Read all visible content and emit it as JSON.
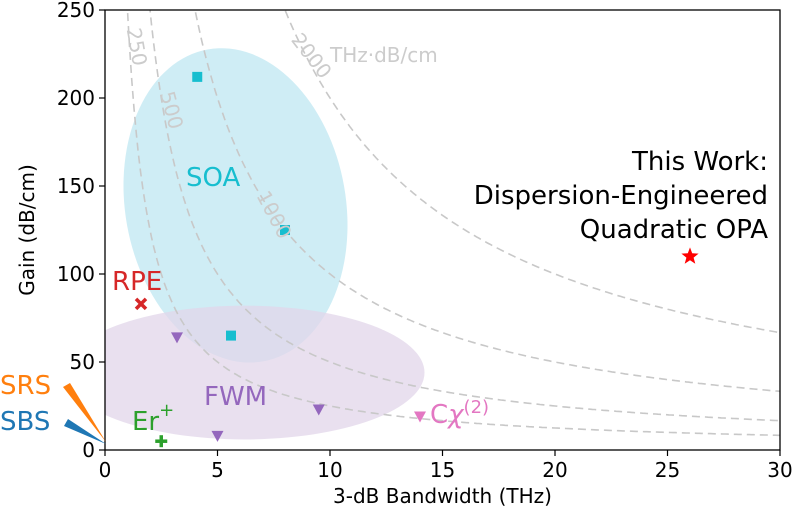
{
  "chart_data": {
    "type": "scatter",
    "xlabel": "3-dB Bandwidth (THz)",
    "ylabel": "Gain (dB/cm)",
    "xlim": [
      0,
      30
    ],
    "ylim": [
      0,
      250
    ],
    "xticks": [
      0,
      5,
      10,
      15,
      20,
      25,
      30
    ],
    "yticks": [
      0,
      50,
      100,
      150,
      200,
      250
    ],
    "contour_unit_label": "THz·dB/cm",
    "contours": [
      {
        "label": "250",
        "value": 250
      },
      {
        "label": "500",
        "value": 500
      },
      {
        "label": "1000",
        "value": 1000
      },
      {
        "label": "2000",
        "value": 2000
      }
    ],
    "series": [
      {
        "name": "SOA",
        "marker": "square",
        "color": "#17becf",
        "points": [
          {
            "x": 4.1,
            "y": 212
          },
          {
            "x": 8.0,
            "y": 125
          },
          {
            "x": 5.6,
            "y": 65
          }
        ]
      },
      {
        "name": "FWM",
        "marker": "triangle-down",
        "color": "#9467bd",
        "points": [
          {
            "x": 3.2,
            "y": 64
          },
          {
            "x": 5.0,
            "y": 8
          },
          {
            "x": 9.5,
            "y": 23
          }
        ]
      },
      {
        "name": "RPE",
        "marker": "x",
        "color": "#d62728",
        "points": [
          {
            "x": 1.6,
            "y": 83
          }
        ]
      },
      {
        "name": "Er",
        "marker": "plus",
        "color": "#2ca02c",
        "points": [
          {
            "x": 2.5,
            "y": 5
          }
        ]
      },
      {
        "name": "Cχ(2)",
        "marker": "triangle-down",
        "color": "#e377c2",
        "points": [
          {
            "x": 14.0,
            "y": 19
          }
        ]
      },
      {
        "name": "This Work",
        "marker": "star",
        "color": "#ff0000",
        "points": [
          {
            "x": 26.0,
            "y": 110
          }
        ]
      }
    ],
    "regions": [
      {
        "name": "SOA",
        "color": "#bfe7f2",
        "cx": 5.8,
        "cy": 139,
        "rx": 4.9,
        "ry": 90,
        "angle": -10
      },
      {
        "name": "FWM",
        "color": "#e2d6ea",
        "cx": 6.2,
        "cy": 44,
        "rx": 8.0,
        "ry": 38,
        "angle": 0
      }
    ],
    "annotations": {
      "soa": "SOA",
      "fwm": "FWM",
      "rpe": "RPE",
      "er": "Er",
      "er_sup": "+",
      "chi_c": "C",
      "chi_sym": "χ",
      "chi_sup": "(2)",
      "srs": "SRS",
      "sbs": "SBS",
      "this_work_lines": [
        "This Work:",
        "Dispersion-Engineered",
        "Quadratic OPA"
      ]
    },
    "colors": {
      "soa": "#17becf",
      "fwm": "#9467bd",
      "rpe": "#d62728",
      "er": "#2ca02c",
      "chi": "#e377c2",
      "star": "#ff0000",
      "srs": "#ff7f0e",
      "sbs": "#1f77b4",
      "contour": "#c8c8c8"
    }
  }
}
